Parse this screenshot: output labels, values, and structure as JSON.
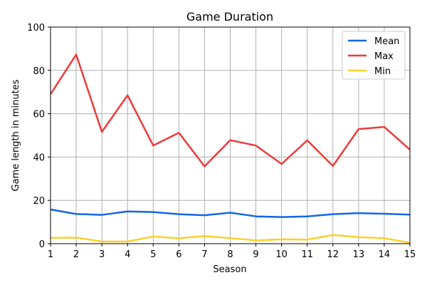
{
  "chart_data": {
    "type": "line",
    "title": "Game Duration",
    "xlabel": "Season",
    "ylabel": "Game length in minutes",
    "x": [
      1,
      2,
      3,
      4,
      5,
      6,
      7,
      8,
      9,
      10,
      11,
      12,
      13,
      14,
      15
    ],
    "xlim": [
      1,
      15
    ],
    "ylim": [
      0,
      100
    ],
    "yticks": [
      0,
      20,
      40,
      60,
      80,
      100
    ],
    "xticks": [
      1,
      2,
      3,
      4,
      5,
      6,
      7,
      8,
      9,
      10,
      11,
      12,
      13,
      14,
      15
    ],
    "grid": true,
    "legend_position": "top-right",
    "series": [
      {
        "name": "Mean",
        "color": "#1565e8",
        "values": [
          15.8,
          13.7,
          13.3,
          14.9,
          14.6,
          13.6,
          13.1,
          14.3,
          12.6,
          12.3,
          12.6,
          13.6,
          14.1,
          13.8,
          13.4
        ]
      },
      {
        "name": "Max",
        "color": "#f03a3a",
        "values": [
          69.0,
          87.3,
          51.6,
          68.5,
          45.3,
          51.2,
          35.7,
          47.8,
          45.3,
          36.8,
          47.7,
          35.9,
          52.9,
          53.9,
          43.4
        ]
      },
      {
        "name": "Min",
        "color": "#fcd02a",
        "values": [
          2.7,
          2.8,
          1.0,
          1.0,
          3.3,
          2.5,
          3.5,
          2.6,
          1.5,
          2.0,
          1.9,
          4.0,
          3.0,
          2.5,
          0.4
        ]
      }
    ]
  }
}
